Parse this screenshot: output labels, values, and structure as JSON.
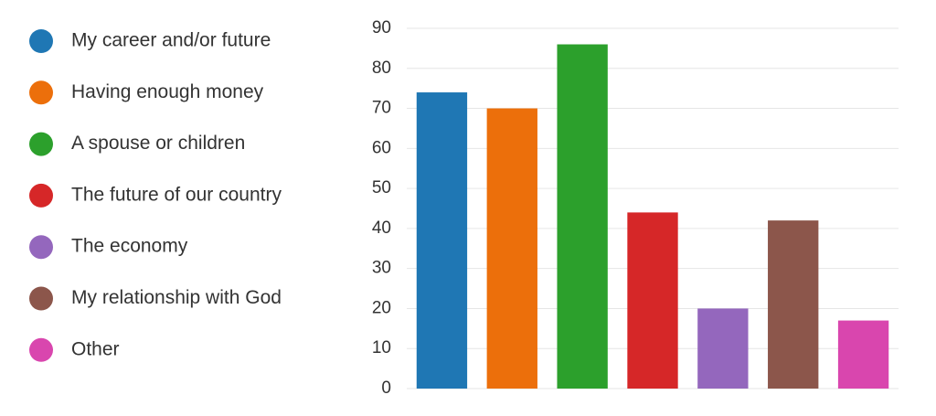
{
  "chart_data": {
    "type": "bar",
    "categories": [
      "My career and/or future",
      "Having enough money",
      "A spouse or children",
      "The future of our country",
      "The economy",
      "My relationship with God",
      "Other"
    ],
    "values": [
      74,
      70,
      86,
      44,
      20,
      42,
      17
    ],
    "colors": [
      "#1f77b4",
      "#ec6f0b",
      "#2ca02c",
      "#d62728",
      "#9467bd",
      "#8c564b",
      "#d946ae"
    ],
    "ylim": [
      0,
      90
    ],
    "yticks": [
      0,
      10,
      20,
      30,
      40,
      50,
      60,
      70,
      80,
      90
    ],
    "grid": true
  }
}
